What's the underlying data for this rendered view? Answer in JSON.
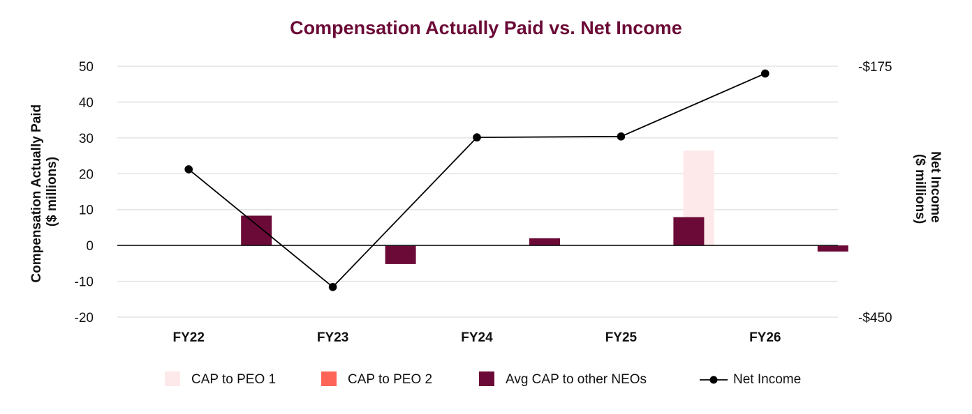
{
  "chart_data": {
    "type": "bar",
    "title": "Compensation Actually Paid vs. Net Income",
    "categories": [
      "FY22",
      "FY23",
      "FY24",
      "FY25",
      "FY26"
    ],
    "ylabel_left_line1": "Compensation Actually Paid",
    "ylabel_left_line2": "($ millions)",
    "ylabel_right_line1": "Net Income",
    "ylabel_right_line2": "($ millions)",
    "ylim_left": [
      -20,
      50
    ],
    "yticks_left": [
      50,
      40,
      30,
      20,
      10,
      0,
      -10,
      -20
    ],
    "ylim_right": [
      -450,
      -175
    ],
    "yticks_right": [
      {
        "value": -175,
        "label": "-$175"
      },
      {
        "value": -450,
        "label": "-$450"
      }
    ],
    "grid": true,
    "legend_position": "bottom",
    "series": [
      {
        "name": "CAP to PEO 1",
        "kind": "bar",
        "color": "#fde9e9",
        "values": [
          null,
          null,
          null,
          null,
          26.5
        ]
      },
      {
        "name": "CAP to PEO 2",
        "kind": "bar",
        "color": "#ff6459",
        "values": [
          null,
          null,
          null,
          null,
          null
        ]
      },
      {
        "name": "Avg CAP to other NEOs",
        "kind": "bar",
        "color": "#6b0a36",
        "values": [
          8.3,
          -5.2,
          2.0,
          7.9,
          -1.7
        ]
      },
      {
        "name": "Net Income",
        "kind": "line",
        "color": "#000000",
        "axis": "right",
        "values": [
          -288,
          -417,
          -253,
          -252,
          -183
        ]
      }
    ]
  }
}
